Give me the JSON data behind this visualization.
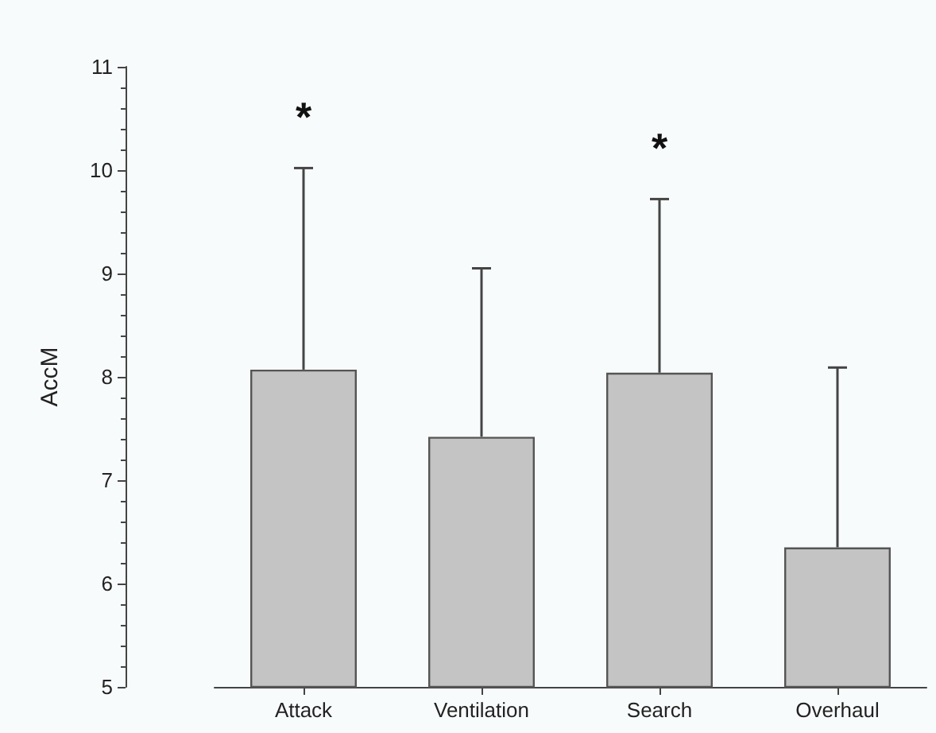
{
  "chart_data": {
    "type": "bar",
    "ylabel": "AccM",
    "categories": [
      "Attack",
      "Ventilation",
      "Search",
      "Overhaul"
    ],
    "values": [
      8.07,
      7.42,
      8.04,
      6.35
    ],
    "errors": [
      [
        8.07,
        10.02
      ],
      [
        7.42,
        9.05
      ],
      [
        8.04,
        9.72
      ],
      [
        6.35,
        8.09
      ]
    ],
    "color": "#c4c4c4",
    "ylim": [
      5,
      11
    ],
    "yticks": [
      5,
      6,
      7,
      8,
      9,
      10,
      11
    ],
    "grid": false,
    "annotations": [
      "*",
      "*"
    ]
  }
}
